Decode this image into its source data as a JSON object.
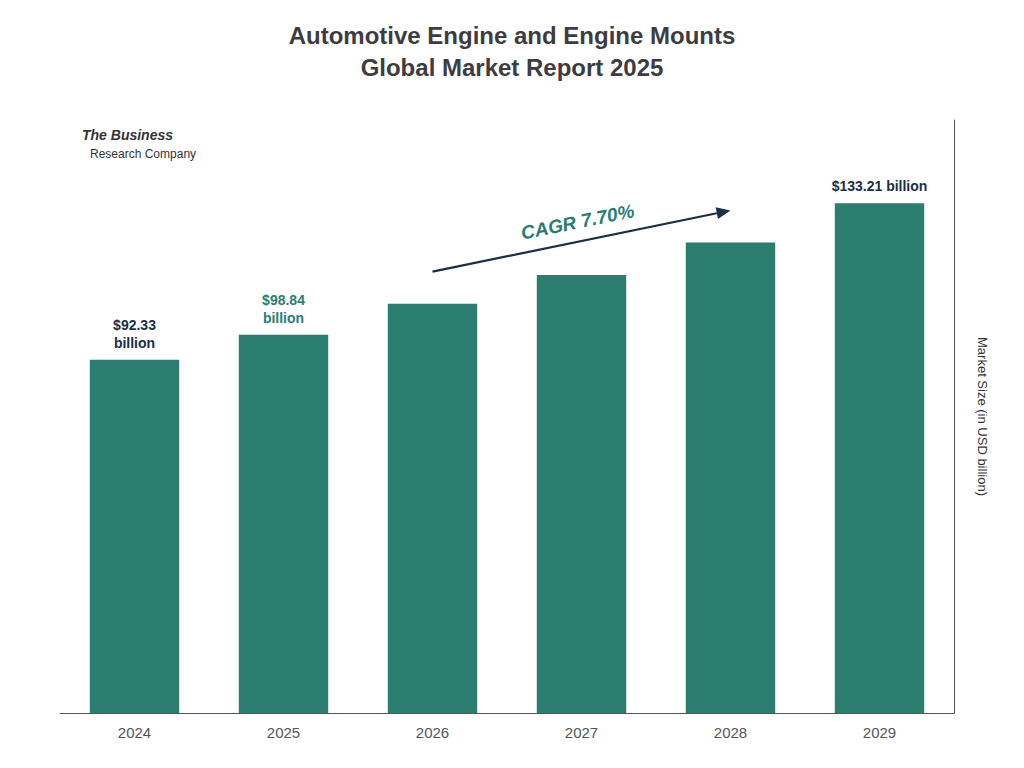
{
  "chart_data": {
    "type": "bar",
    "title": "Automotive Engine and Engine Mounts\nGlobal Market Report 2025",
    "categories": [
      "2024",
      "2025",
      "2026",
      "2027",
      "2028",
      "2029"
    ],
    "values": [
      92.33,
      98.84,
      107.0,
      114.5,
      123.0,
      133.21
    ],
    "color": "#2a7d6f",
    "ylabel": "Market Size (in USD billion)",
    "ylim": [
      0,
      155
    ],
    "yticks": [],
    "grid": false,
    "tick_labels": "x",
    "annotations": [
      {
        "text": "$92.33\nbillion",
        "category": "2024",
        "color": "#1a2e44"
      },
      {
        "text": "$98.84\nbillion",
        "category": "2025",
        "color": "#2a7d6f"
      },
      {
        "text": "$133.21 billion",
        "category": "2029",
        "color": "#1a2e44"
      },
      {
        "text": "CAGR 7.70%",
        "color": "#2a7d6f",
        "arrow": {
          "from": "2026",
          "to": "2028",
          "color": "#1a2e44"
        }
      },
      {
        "text": "The Business"
      },
      {
        "text": "Research Company"
      }
    ]
  }
}
